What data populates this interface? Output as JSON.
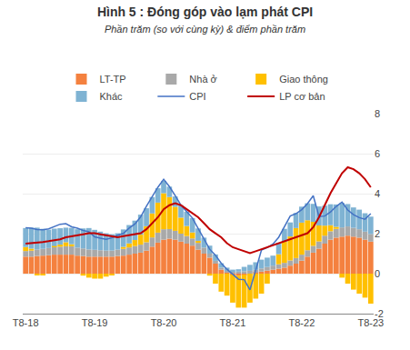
{
  "chart_data": {
    "type": "bar",
    "title": "Hình 5 : Đóng góp vào lạm phát CPI",
    "subtitle": "Phần trăm (so với cùng kỳ) & điểm phần trăm",
    "title_color": "#333333",
    "subtitle_color": "#333333",
    "stacked": true,
    "grid": true,
    "legend": "top",
    "categories": [
      "T8-18",
      null,
      null,
      null,
      null,
      null,
      null,
      null,
      null,
      null,
      null,
      null,
      "T8-19",
      null,
      null,
      null,
      null,
      null,
      null,
      null,
      null,
      null,
      null,
      null,
      "T8-20",
      null,
      null,
      null,
      null,
      null,
      null,
      null,
      null,
      null,
      null,
      null,
      "T8-21",
      null,
      null,
      null,
      null,
      null,
      null,
      null,
      null,
      null,
      null,
      null,
      "T8-22",
      null,
      null,
      null,
      null,
      null,
      null,
      null,
      null,
      null,
      null,
      null,
      "T8-23"
    ],
    "ylim": [
      -2,
      8
    ],
    "yticks": [
      -2,
      0,
      2,
      4,
      6,
      8
    ],
    "series": [
      {
        "name": "LT-TP",
        "type": "bar",
        "color": "#f4813f",
        "values": [
          0.85,
          0.85,
          0.88,
          0.9,
          0.92,
          0.95,
          0.95,
          0.95,
          0.95,
          0.9,
          0.88,
          0.85,
          0.85,
          0.85,
          0.85,
          0.85,
          0.88,
          0.9,
          0.95,
          1.0,
          1.05,
          1.15,
          1.35,
          1.55,
          1.7,
          1.75,
          1.7,
          1.6,
          1.5,
          1.4,
          1.2,
          1.0,
          0.8,
          0.5,
          0.2,
          0.05,
          -0.05,
          -0.1,
          -0.05,
          0.0,
          0.05,
          0.1,
          0.15,
          0.2,
          0.25,
          0.3,
          0.4,
          0.5,
          0.65,
          0.85,
          1.05,
          1.25,
          1.5,
          1.7,
          1.8,
          1.85,
          1.9,
          1.85,
          1.8,
          1.7,
          1.6
        ]
      },
      {
        "name": "Nhà ở",
        "type": "bar",
        "color": "#a9a9a9",
        "values": [
          0.28,
          0.3,
          0.32,
          0.34,
          0.36,
          0.38,
          0.4,
          0.42,
          0.42,
          0.4,
          0.38,
          0.36,
          0.34,
          0.32,
          0.3,
          0.3,
          0.32,
          0.34,
          0.36,
          0.38,
          0.4,
          0.42,
          0.46,
          0.5,
          0.52,
          0.48,
          0.44,
          0.4,
          0.38,
          0.36,
          0.34,
          0.3,
          0.2,
          0.14,
          0.1,
          0.08,
          0.08,
          0.1,
          0.12,
          0.14,
          0.14,
          0.16,
          0.18,
          0.2,
          0.22,
          0.24,
          0.26,
          0.28,
          0.3,
          0.32,
          0.34,
          0.36,
          0.4,
          0.42,
          0.44,
          0.46,
          0.46,
          0.44,
          0.42,
          0.4,
          0.38
        ]
      },
      {
        "name": "Giao thông",
        "type": "bar",
        "color": "#ffc000",
        "values": [
          0.2,
          0.1,
          -0.05,
          -0.05,
          0.0,
          0.05,
          0.1,
          0.2,
          0.1,
          0.0,
          -0.1,
          -0.2,
          -0.25,
          -0.25,
          -0.15,
          -0.05,
          0.0,
          0.1,
          0.2,
          0.3,
          0.5,
          0.8,
          1.2,
          1.5,
          1.8,
          1.6,
          1.2,
          0.8,
          0.5,
          0.3,
          0.1,
          0.0,
          -0.1,
          -0.5,
          -0.9,
          -1.1,
          -1.4,
          -1.6,
          -1.65,
          -1.45,
          -1.25,
          -1.0,
          -0.5,
          0.0,
          0.5,
          1.05,
          1.2,
          1.5,
          1.6,
          1.5,
          1.2,
          0.8,
          0.5,
          0.3,
          0.1,
          -0.2,
          -0.5,
          -0.8,
          -1.0,
          -1.2,
          -1.5
        ]
      },
      {
        "name": "Khác",
        "type": "bar",
        "color": "#7fb3d3",
        "values": [
          0.95,
          1.05,
          1.1,
          1.0,
          0.92,
          0.87,
          0.82,
          0.73,
          0.82,
          0.92,
          1.0,
          1.07,
          1.0,
          0.93,
          0.87,
          0.82,
          0.82,
          0.87,
          0.92,
          0.97,
          1.0,
          0.9,
          0.82,
          0.72,
          0.62,
          0.52,
          0.52,
          0.62,
          0.72,
          0.72,
          0.62,
          0.5,
          0.4,
          0.32,
          0.22,
          0.17,
          0.12,
          0.12,
          0.22,
          0.3,
          0.38,
          0.44,
          0.47,
          0.5,
          0.58,
          0.65,
          0.7,
          0.75,
          0.8,
          0.85,
          0.9,
          0.95,
          1.0,
          1.05,
          1.12,
          1.22,
          1.12,
          1.02,
          0.98,
          0.92,
          0.87
        ]
      },
      {
        "name": "CPI",
        "type": "line",
        "color": "#4472c4",
        "values": [
          2.3,
          2.27,
          2.2,
          2.19,
          2.24,
          2.37,
          2.47,
          2.5,
          2.34,
          2.27,
          2.16,
          2.09,
          1.84,
          1.77,
          1.72,
          1.79,
          1.92,
          2.01,
          2.28,
          2.48,
          2.84,
          3.37,
          3.84,
          4.32,
          4.72,
          4.35,
          3.9,
          3.42,
          3.1,
          2.78,
          2.26,
          1.74,
          1.22,
          0.92,
          0.52,
          0.22,
          -0.02,
          -0.28,
          -0.3,
          -0.81,
          0.17,
          1.18,
          1.3,
          1.48,
          1.82,
          2.38,
          2.88,
          3.0,
          3.2,
          3.5,
          3.9,
          2.85,
          2.88,
          3.08,
          3.36,
          3.58,
          3.18,
          2.95,
          2.8,
          2.72,
          3.0
        ]
      },
      {
        "name": "LP cơ bản",
        "type": "line",
        "color": "#c00000",
        "values": [
          1.5,
          1.52,
          1.55,
          1.58,
          1.62,
          1.66,
          1.72,
          1.82,
          1.88,
          1.92,
          1.97,
          2.02,
          2.02,
          1.97,
          1.92,
          1.87,
          1.82,
          1.87,
          1.92,
          1.97,
          2.02,
          2.22,
          2.52,
          2.82,
          3.22,
          3.42,
          3.52,
          3.42,
          3.22,
          3.02,
          2.82,
          2.52,
          2.22,
          2.02,
          1.82,
          1.52,
          1.32,
          1.22,
          1.12,
          1.02,
          1.12,
          1.22,
          1.32,
          1.42,
          1.52,
          1.62,
          1.72,
          1.82,
          1.92,
          2.02,
          2.32,
          2.82,
          3.42,
          4.02,
          4.52,
          5.02,
          5.32,
          5.22,
          5.02,
          4.72,
          4.32
        ]
      }
    ]
  }
}
